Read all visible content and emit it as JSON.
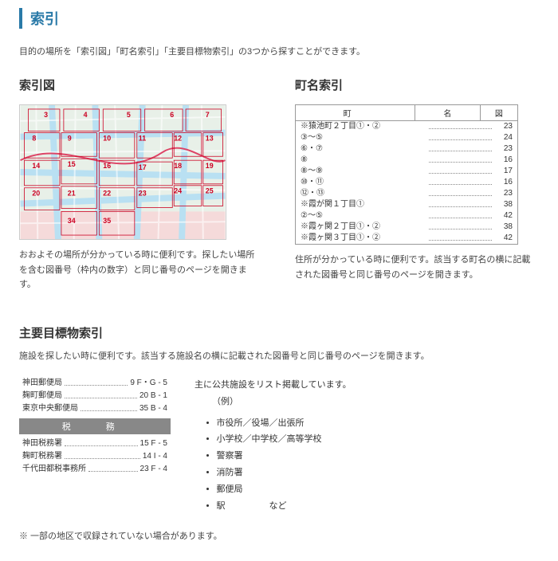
{
  "title": "索引",
  "intro": "目的の場所を「索引図」「町名索引」「主要目標物索引」の3つから探すことができます。",
  "sec1": {
    "title": "索引図",
    "desc": "おおよその場所が分かっている時に便利です。探したい場所を含む図番号（枠内の数字）と同じ番号のページを開きます。"
  },
  "sec2": {
    "title": "町名索引",
    "desc": "住所が分かっている時に便利です。該当する町名の横に記載された図番号と同じ番号のページを開きます。",
    "head": {
      "town": "町",
      "name": "名",
      "page": "図"
    },
    "rows": [
      {
        "label": "※猿池町２丁目①・②",
        "page": "23"
      },
      {
        "label": "③〜⑤",
        "page": "24"
      },
      {
        "label": "⑥・⑦",
        "page": "23"
      },
      {
        "label": "⑧",
        "page": "16"
      },
      {
        "label": "⑧〜⑨",
        "page": "17"
      },
      {
        "label": "⑩・⑪",
        "page": "16"
      },
      {
        "label": "⑫・⑬",
        "page": "23"
      },
      {
        "label": "※霞が関１丁目①",
        "page": "38"
      },
      {
        "label": "②〜⑤",
        "page": "42"
      },
      {
        "label": "※霞ヶ関２丁目①・②",
        "page": "38"
      },
      {
        "label": "※霞ヶ関３丁目①・②",
        "page": "42"
      }
    ]
  },
  "sec3": {
    "title": "主要目標物索引",
    "desc": "施設を探したい時に便利です。該当する施設名の横に記載された図番号と同じ番号のページを開きます。",
    "group1": [
      {
        "label": "神田郵便局",
        "page": "9  F・G - 5"
      },
      {
        "label": "麹町郵便局",
        "page": "20  B - 1"
      },
      {
        "label": "東京中央郵便局",
        "page": "35  B - 4"
      }
    ],
    "header2": "税　務",
    "group2": [
      {
        "label": "神田税務署",
        "page": "15  F - 5"
      },
      {
        "label": "麹町税務署",
        "page": "14  I - 4"
      },
      {
        "label": "千代田都税事務所",
        "page": "23  F - 4"
      }
    ],
    "side_intro": "主に公共施設をリスト掲載しています。",
    "side_ex": "（例）",
    "side_items": [
      "市役所／役場／出張所",
      "小学校／中学校／高等学校",
      "警察署",
      "消防署",
      "郵便局",
      "駅　　　　　など"
    ]
  },
  "note": "※ 一部の地区で収録されていない場合があります。"
}
